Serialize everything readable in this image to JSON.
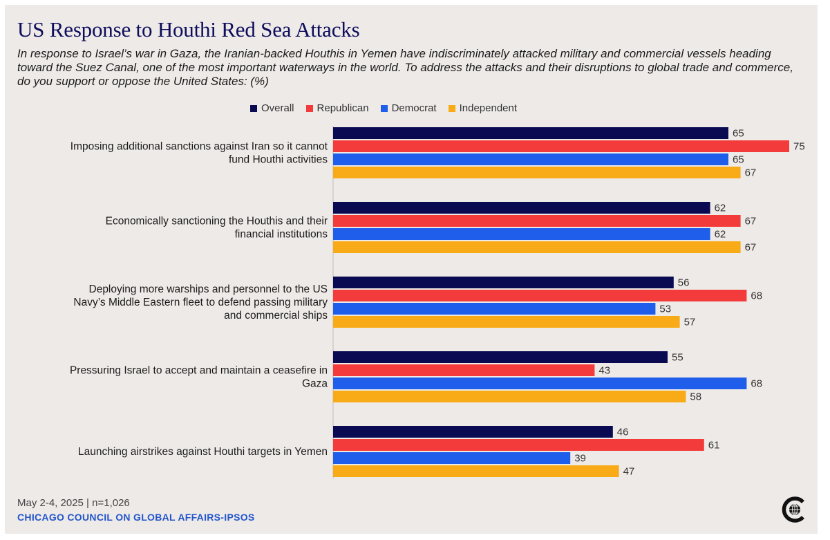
{
  "title": "US Response to Houthi Red Sea Attacks",
  "subtitle": "In response to Israel’s war in Gaza, the Iranian-backed Houthis in Yemen have indiscriminately attacked military and commercial vessels heading toward the Suez Canal, one of the most important waterways in the world. To address the attacks and their disruptions to global trade and commerce, do you support or oppose the United States: (%)",
  "footer": {
    "date": "May 2-4, 2025 | n=1,026",
    "source": "CHICAGO COUNCIL ON GLOBAL AFFAIRS-IPSOS"
  },
  "logo": {
    "icon": "chicago-council-logo-icon"
  },
  "chart_data": {
    "type": "bar",
    "orientation": "horizontal",
    "categories": [
      [
        "Imposing additional sanctions against Iran so it cannot",
        "fund Houthi activities"
      ],
      [
        "Economically sanctioning the Houthis and their",
        "financial institutions"
      ],
      [
        "Deploying more warships and personnel to the US",
        "Navy’s Middle Eastern fleet to defend passing military",
        "and commercial ships"
      ],
      [
        "Pressuring Israel to accept and maintain a ceasefire in",
        "Gaza"
      ],
      [
        "Launching airstrikes against Houthi targets in Yemen"
      ]
    ],
    "series": [
      {
        "name": "Overall",
        "color": "#0a0a52",
        "values": [
          65,
          62,
          56,
          55,
          46
        ]
      },
      {
        "name": "Republican",
        "color": "#f43b3b",
        "values": [
          75,
          67,
          68,
          43,
          61
        ]
      },
      {
        "name": "Democrat",
        "color": "#1f5eea",
        "values": [
          65,
          62,
          53,
          68,
          39
        ]
      },
      {
        "name": "Independent",
        "color": "#f9aa17",
        "values": [
          67,
          67,
          57,
          58,
          47
        ]
      }
    ],
    "xlim": [
      0,
      75
    ],
    "legend_position": "top",
    "grid": false,
    "data_labels": true
  }
}
